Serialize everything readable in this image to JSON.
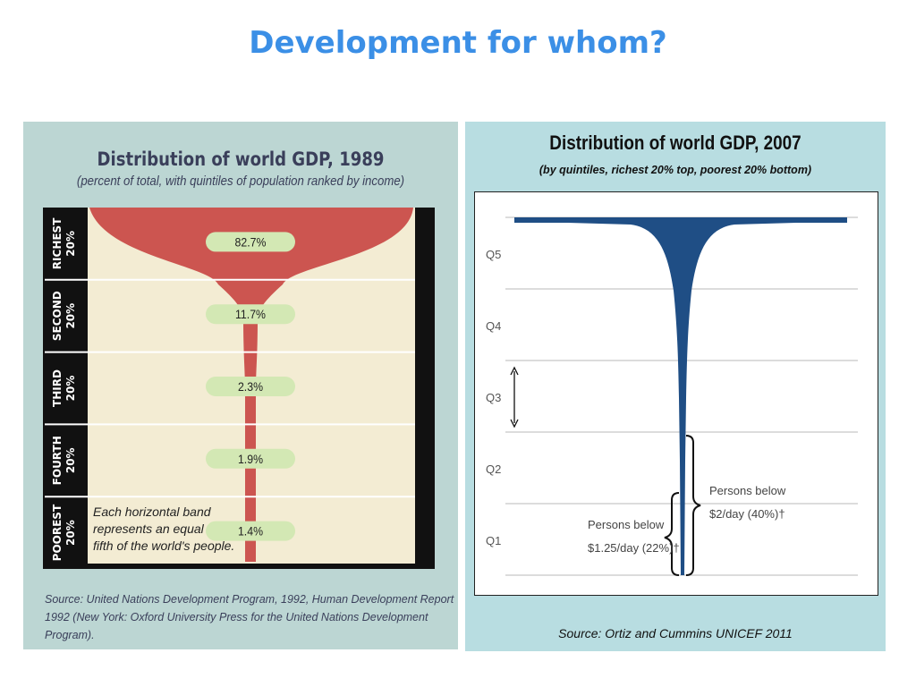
{
  "slide": {
    "title": "Development for whom?"
  },
  "left": {
    "title": "Distribution of world GDP, 1989",
    "subtitle": "(percent of total, with quintiles of population ranked by income)",
    "note_lines": [
      "Each horizontal band",
      "represents an equal",
      "fifth of the world's people."
    ],
    "source_lines": [
      "Source: United Nations Development Program, 1992, Human Development Report",
      "1992 (New York: Oxford University Press for the United Nations Development Program)."
    ]
  },
  "right": {
    "title": "Distribution of world GDP, 2007",
    "subtitle": "(by quintiles, richest 20% top, poorest 20% bottom)",
    "source": "Source: Ortiz and Cummins UNICEF 2011",
    "annotations": {
      "below_2_lines": [
        "Persons below",
        "$2/day (40%)†"
      ],
      "below_125_lines": [
        "Persons below",
        "$1.25/day (22%)†"
      ]
    }
  },
  "colors": {
    "title_blue": "#3b8fe6",
    "funnel_red": "#cc5550",
    "band_bg": "#f3ecd3",
    "pill_green": "#d3e8b4",
    "bar_blue": "#1f4e85",
    "left_bg": "#bcd6d3",
    "right_bg": "#b8dde1"
  },
  "chart_data": [
    {
      "type": "bar",
      "title": "Distribution of world GDP, 1989",
      "subtitle": "(percent of total, with quintiles of population ranked by income)",
      "categories": [
        "RICHEST 20%",
        "SECOND 20%",
        "THIRD 20%",
        "FOURTH 20%",
        "POOREST 20%"
      ],
      "values": [
        82.7,
        11.7,
        2.3,
        1.9,
        1.4
      ],
      "value_labels": [
        "82.7%",
        "11.7%",
        "2.3%",
        "1.9%",
        "1.4%"
      ],
      "unit": "%"
    },
    {
      "type": "bar",
      "title": "Distribution of world GDP, 2007",
      "subtitle": "(by quintiles, richest 20% top, poorest 20% bottom)",
      "categories": [
        "Q5",
        "Q4",
        "Q3",
        "Q2",
        "Q1"
      ],
      "grid": true,
      "orientation": "horizontal-centered"
    }
  ]
}
